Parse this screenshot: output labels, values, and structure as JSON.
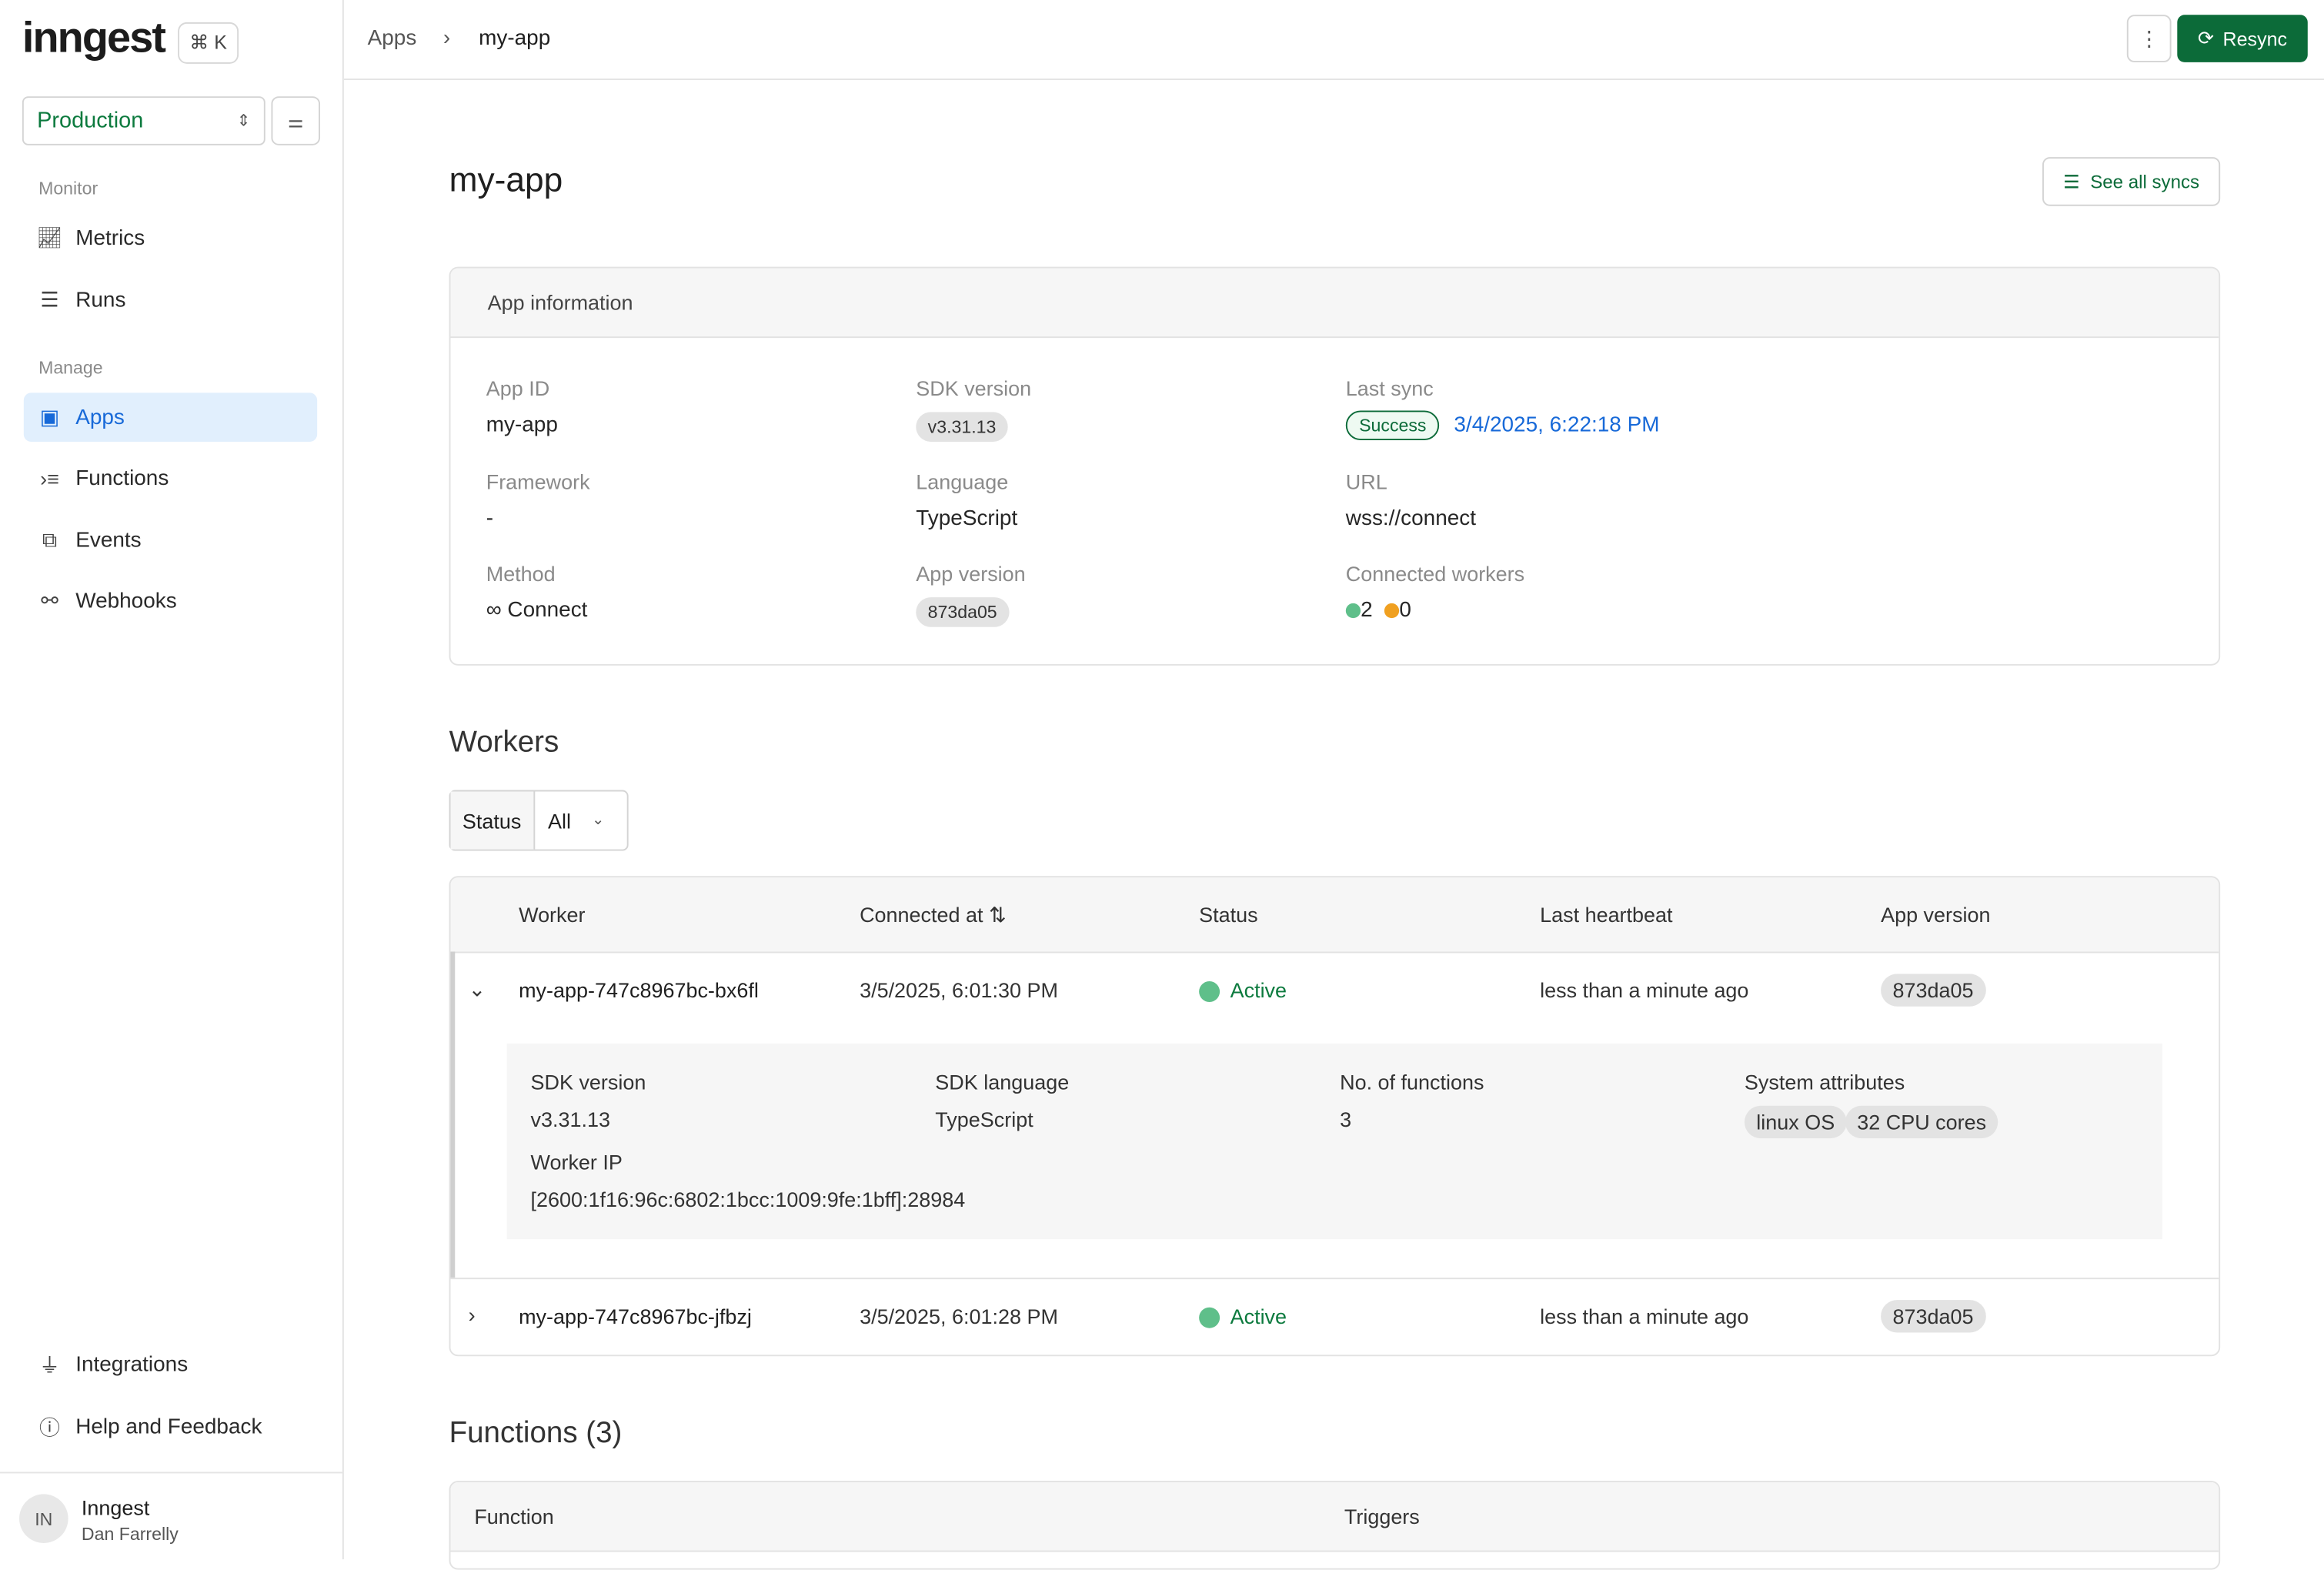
{
  "sidebar": {
    "logo": "inngest",
    "shortcut": "⌘ K",
    "environment": "Production",
    "sections": [
      {
        "label": "Monitor",
        "items": [
          {
            "label": "Metrics",
            "icon": "chart-line-icon"
          },
          {
            "label": "Runs",
            "icon": "runs-icon"
          }
        ]
      },
      {
        "label": "Manage",
        "items": [
          {
            "label": "Apps",
            "icon": "apps-icon",
            "active": true
          },
          {
            "label": "Functions",
            "icon": "functions-icon"
          },
          {
            "label": "Events",
            "icon": "events-icon"
          },
          {
            "label": "Webhooks",
            "icon": "webhook-icon"
          }
        ]
      }
    ],
    "bottom": [
      {
        "label": "Integrations",
        "icon": "plug-icon"
      },
      {
        "label": "Help and Feedback",
        "icon": "help-icon"
      }
    ],
    "user": {
      "initials": "IN",
      "org": "Inngest",
      "name": "Dan Farrelly"
    }
  },
  "breadcrumb": {
    "parent": "Apps",
    "current": "my-app"
  },
  "header": {
    "resync": "Resync"
  },
  "page": {
    "title": "my-app",
    "see_all_syncs": "See all syncs"
  },
  "app_info": {
    "heading": "App information",
    "app_id_label": "App ID",
    "app_id": "my-app",
    "sdk_version_label": "SDK version",
    "sdk_version": "v3.31.13",
    "last_sync_label": "Last sync",
    "last_sync_status": "Success",
    "last_sync_time": "3/4/2025, 6:22:18 PM",
    "framework_label": "Framework",
    "framework": "-",
    "language_label": "Language",
    "language": "TypeScript",
    "url_label": "URL",
    "url": "wss://connect",
    "method_label": "Method",
    "method": "Connect",
    "app_version_label": "App version",
    "app_version": "873da05",
    "connected_workers_label": "Connected workers",
    "workers_active": "2",
    "workers_inactive": "0"
  },
  "colors": {
    "accent": "#0c6b39",
    "link": "#1769d8",
    "active_dot": "#5fbf8a",
    "warn_dot": "#f0a020"
  },
  "workers": {
    "heading": "Workers",
    "filter": {
      "label": "Status",
      "value": "All"
    },
    "columns": [
      "Worker",
      "Connected at",
      "Status",
      "Last heartbeat",
      "App version"
    ],
    "rows": [
      {
        "name": "my-app-747c8967bc-bx6fl",
        "connected_at": "3/5/2025, 6:01:30 PM",
        "status": "Active",
        "heartbeat": "less than a minute ago",
        "version": "873da05",
        "expanded": true,
        "details": {
          "sdk_version_label": "SDK version",
          "sdk_version": "v3.31.13",
          "sdk_language_label": "SDK language",
          "sdk_language": "TypeScript",
          "functions_label": "No. of functions",
          "functions": "3",
          "attrs_label": "System attributes",
          "attrs": [
            "linux OS",
            "32 CPU cores"
          ],
          "ip_label": "Worker IP",
          "ip": "[2600:1f16:96c:6802:1bcc:1009:9fe:1bff]:28984"
        }
      },
      {
        "name": "my-app-747c8967bc-jfbzj",
        "connected_at": "3/5/2025, 6:01:28 PM",
        "status": "Active",
        "heartbeat": "less than a minute ago",
        "version": "873da05",
        "expanded": false
      }
    ]
  },
  "functions": {
    "heading": "Functions (3)",
    "columns": [
      "Function",
      "Triggers"
    ]
  }
}
